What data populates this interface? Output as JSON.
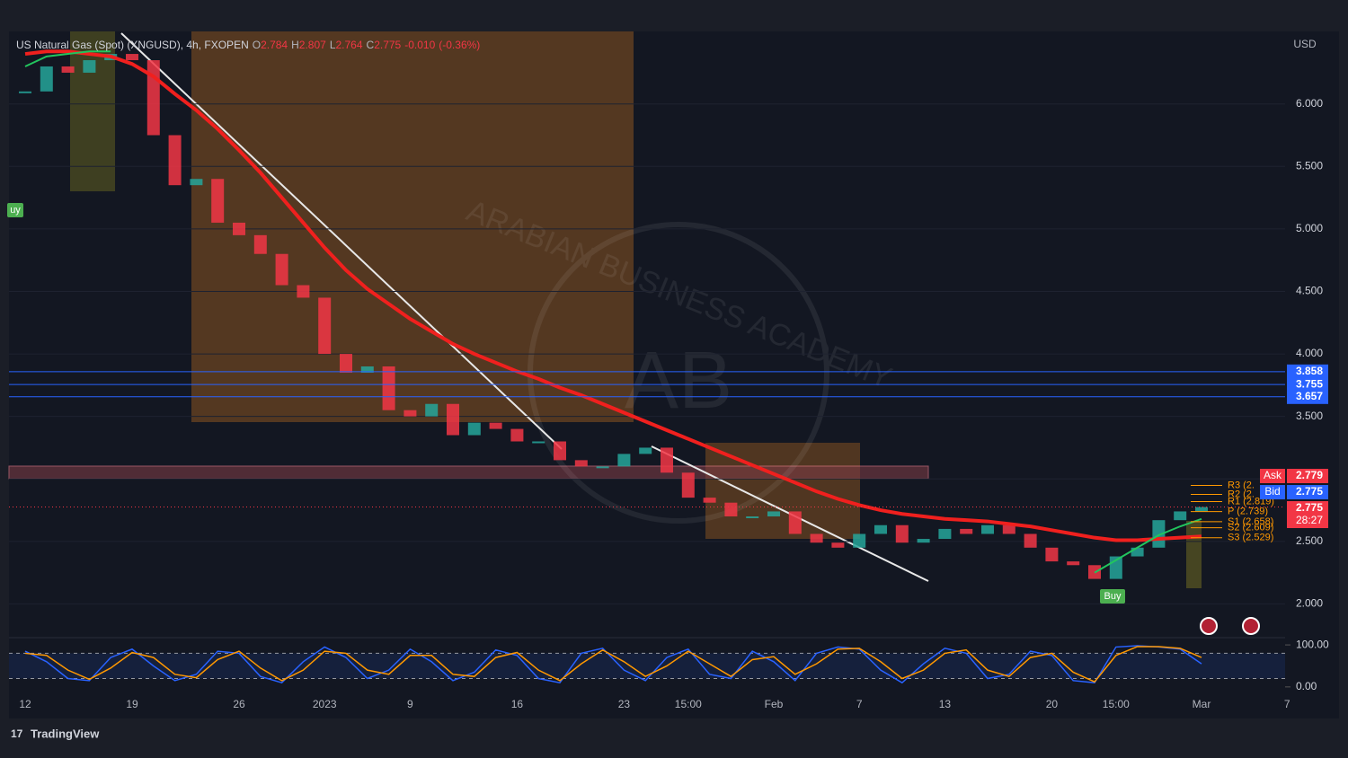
{
  "chart_data": [
    {
      "type": "line",
      "title": "US Natural Gas (Spot) (XNGUSD), 4h, FXOPEN",
      "ohlc": [
        {
          "label": "O",
          "value": 2.784
        },
        {
          "label": "H",
          "value": 2.807
        },
        {
          "label": "L",
          "value": 2.764
        },
        {
          "label": "C",
          "value": 2.775
        }
      ],
      "change": {
        "value": -0.01,
        "label": "-0.010"
      },
      "change_pct": {
        "value": -0.36,
        "label": "(-0.36%)"
      },
      "y_unit": "USD",
      "categories": [
        "12",
        null,
        null,
        null,
        null,
        "19",
        null,
        null,
        null,
        null,
        "26",
        null,
        null,
        null,
        "2023",
        null,
        null,
        null,
        "9",
        null,
        null,
        null,
        null,
        "16",
        null,
        null,
        null,
        null,
        "23",
        null,
        null,
        "15:00",
        null,
        null,
        null,
        "Feb",
        null,
        null,
        null,
        "7",
        null,
        null,
        null,
        "13",
        null,
        null,
        null,
        null,
        "20",
        null,
        null,
        "15:00",
        null,
        null,
        null,
        "Mar",
        null,
        null,
        null,
        "7"
      ],
      "series": [
        {
          "name": "XNGUSD",
          "style": "candles",
          "up_color": "#26a69a",
          "down_color": "#f23645",
          "values": [
            6.1,
            6.3,
            6.25,
            6.35,
            6.4,
            6.35,
            5.75,
            5.35,
            5.4,
            5.05,
            4.95,
            4.8,
            4.55,
            4.45,
            4.0,
            3.85,
            3.9,
            3.55,
            3.5,
            3.6,
            3.35,
            3.45,
            3.4,
            3.3,
            3.3,
            3.15,
            3.1,
            3.1,
            3.2,
            3.25,
            3.05,
            2.85,
            2.81,
            2.7,
            2.7,
            2.74,
            2.56,
            2.49,
            2.45,
            2.56,
            2.63,
            2.49,
            2.52,
            2.6,
            2.56,
            2.63,
            2.56,
            2.45,
            2.34,
            2.31,
            2.2,
            2.38,
            2.45,
            2.67,
            2.74,
            2.775,
            null,
            null,
            null,
            null
          ]
        },
        {
          "name": "EMA",
          "style": "line",
          "color": "#f0201e",
          "width": 4,
          "values": [
            6.4,
            6.42,
            6.42,
            6.4,
            6.38,
            6.32,
            6.22,
            6.08,
            5.95,
            5.8,
            5.63,
            5.45,
            5.25,
            5.05,
            4.85,
            4.67,
            4.52,
            4.4,
            4.28,
            4.18,
            4.08,
            4.0,
            3.93,
            3.86,
            3.8,
            3.73,
            3.67,
            3.6,
            3.53,
            3.46,
            3.39,
            3.32,
            3.25,
            3.18,
            3.11,
            3.04,
            2.97,
            2.9,
            2.84,
            2.79,
            2.75,
            2.72,
            2.7,
            2.68,
            2.67,
            2.66,
            2.64,
            2.62,
            2.59,
            2.56,
            2.53,
            2.51,
            2.51,
            2.52,
            2.53,
            2.54,
            null,
            null,
            null,
            null
          ]
        },
        {
          "name": "Trend",
          "style": "line",
          "color": "#22c55e",
          "width": 2,
          "values": [
            6.3,
            6.38,
            6.4,
            6.42,
            6.42,
            null,
            null,
            null,
            null,
            null,
            null,
            null,
            null,
            null,
            null,
            null,
            null,
            null,
            null,
            null,
            null,
            null,
            null,
            null,
            null,
            null,
            null,
            null,
            null,
            null,
            null,
            null,
            null,
            null,
            null,
            null,
            null,
            null,
            null,
            null,
            null,
            null,
            null,
            null,
            null,
            null,
            null,
            null,
            null,
            null,
            2.25,
            2.35,
            2.45,
            2.55,
            2.62,
            2.68,
            null,
            null,
            null,
            null
          ]
        }
      ],
      "ylim": [
        1.73,
        6.58
      ],
      "yticks": [
        {
          "value": 2,
          "label": "2.000"
        },
        {
          "value": 2.5,
          "label": "2.500"
        },
        {
          "value": 3,
          "label": "3.000"
        },
        {
          "value": 3.5,
          "label": "3.500"
        },
        {
          "value": 4,
          "label": "4.000"
        },
        {
          "value": 4.5,
          "label": "4.500"
        },
        {
          "value": 5,
          "label": "5.000"
        },
        {
          "value": 5.5,
          "label": "5.500"
        },
        {
          "value": 6,
          "label": "6.000"
        }
      ],
      "levels": [
        3.858,
        3.755,
        3.657
      ],
      "level_color": "#2962ff",
      "pivots": [
        {
          "label": "R3 (2.",
          "value": 2.948
        },
        {
          "label": "R2 (2.",
          "value": 2.876
        },
        {
          "label": "R1 (2.819)",
          "value": 2.819
        },
        {
          "label": "P (2.739)",
          "value": 2.739
        },
        {
          "label": "S1 (2.658)",
          "value": 2.658
        },
        {
          "label": "S2 (2.609)",
          "value": 2.609
        },
        {
          "label": "S3 (2.529)",
          "value": 2.529
        }
      ],
      "pivot_color": "#ff9800",
      "ask": {
        "label": "Ask",
        "value": 2.779
      },
      "bid": {
        "label": "Bid",
        "value": 2.775
      },
      "last": 2.775,
      "countdown": "28:27",
      "signals": [
        "uy",
        "Buy"
      ]
    },
    {
      "type": "oscillator",
      "ylim": [
        -11,
        113
      ],
      "yticks": [
        {
          "value": 100,
          "label": "100.00"
        },
        {
          "value": 0,
          "label": "0.00"
        }
      ],
      "bands": [
        80,
        20
      ],
      "series": [
        {
          "name": "%K",
          "color": "#2962ff",
          "values": [
            85,
            60,
            20,
            15,
            70,
            90,
            50,
            15,
            30,
            85,
            80,
            25,
            10,
            60,
            95,
            70,
            20,
            40,
            90,
            60,
            15,
            35,
            88,
            75,
            20,
            10,
            80,
            92,
            40,
            15,
            70,
            90,
            30,
            20,
            85,
            60,
            15,
            80,
            95,
            90,
            40,
            10,
            55,
            92,
            80,
            20,
            30,
            85,
            75,
            15,
            10,
            95,
            98,
            95,
            90,
            55,
            null,
            null,
            null,
            null
          ]
        },
        {
          "name": "%D",
          "color": "#ff9800",
          "values": [
            80,
            75,
            40,
            18,
            45,
            82,
            70,
            30,
            22,
            65,
            85,
            45,
            15,
            40,
            85,
            80,
            40,
            30,
            75,
            75,
            30,
            25,
            70,
            82,
            40,
            15,
            55,
            88,
            60,
            25,
            50,
            85,
            55,
            25,
            65,
            72,
            30,
            55,
            90,
            92,
            60,
            20,
            40,
            80,
            88,
            40,
            25,
            70,
            80,
            35,
            12,
            75,
            96,
            96,
            92,
            70,
            null,
            null,
            null,
            null
          ]
        }
      ]
    }
  ],
  "watermark": "ARABIAN BUSINESS ACADEMY",
  "watermark_logo": "AB",
  "brand": "TradingView"
}
